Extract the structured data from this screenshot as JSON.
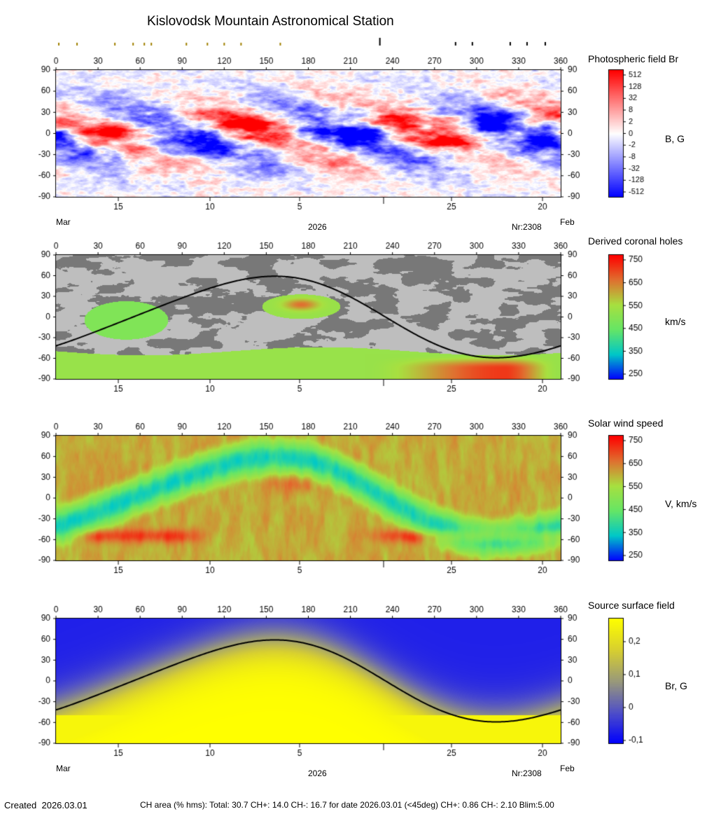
{
  "title": "Kislovodsk Mountain Astronomical Station",
  "footer": {
    "created_label": "Created",
    "created_date": "2026.03.01",
    "ch_area_text": "CH area (% hms): Total: 30.7 CH+: 14.0   CH-: 16.7 for date 2026.03.01 (<45deg) CH+: 0.86    CH-: 2.10 Blim:5.00"
  },
  "shared_axes": {
    "longitude_ticks": [
      0,
      30,
      60,
      90,
      120,
      150,
      180,
      210,
      240,
      270,
      300,
      330,
      360
    ],
    "latitude_ticks": [
      90,
      60,
      30,
      0,
      -30,
      -60,
      -90
    ],
    "xlim": [
      0,
      360
    ],
    "ylim": [
      -90,
      90
    ],
    "date_ticks": [
      "15",
      "10",
      "5",
      "25",
      "20"
    ],
    "month_left": "Mar",
    "month_right": "Feb",
    "year": "2026",
    "rotation_label": "Nr:2308"
  },
  "top_markers": {
    "small_marker_longitudes": [
      2,
      15,
      42,
      55,
      63,
      68,
      93,
      108,
      120,
      132,
      160
    ],
    "tall_marker_longitudes": [
      231
    ],
    "black_marker_longitudes": [
      285,
      297,
      324,
      336,
      349
    ]
  },
  "chart_data": [
    {
      "type": "heatmap",
      "name": "photospheric-field",
      "title": "Photospheric field Br",
      "colorbar_unit": "B, G",
      "colorbar_ticks": [
        "512",
        "128",
        "32",
        "8",
        "2",
        "0",
        "-2",
        "-8",
        "-32",
        "-128",
        "-512"
      ],
      "colormap": [
        "#0000ff",
        "#ffffff",
        "#ff0000"
      ]
    },
    {
      "type": "heatmap",
      "name": "derived-coronal-holes",
      "title": "Derived coronal holes",
      "colorbar_unit": "km/s",
      "colorbar_ticks": [
        "750",
        "650",
        "550",
        "450",
        "350",
        "250"
      ],
      "colorbar_range": [
        250,
        750
      ],
      "colormap": [
        "#0000ff",
        "#00c8c8",
        "#66e666",
        "#a8e040",
        "#e07030",
        "#ff0000"
      ]
    },
    {
      "type": "heatmap",
      "name": "solar-wind-speed",
      "title": "Solar wind speed",
      "colorbar_unit": "V, km/s",
      "colorbar_ticks": [
        "750",
        "650",
        "550",
        "450",
        "350",
        "250"
      ],
      "colorbar_range": [
        250,
        750
      ],
      "colormap": [
        "#0000ff",
        "#00c8c8",
        "#66e666",
        "#a8e040",
        "#e07030",
        "#ff0000"
      ]
    },
    {
      "type": "heatmap",
      "name": "source-surface-field",
      "title": "Source surface field",
      "colorbar_unit": "Br, G",
      "colorbar_ticks": [
        "0,2",
        "0,1",
        "0",
        "-0,1"
      ],
      "colorbar_range": [
        -0.1,
        0.27
      ],
      "colormap": [
        "#0000ff",
        "#5050c8",
        "#9a9a7a",
        "#d8d030",
        "#ffff00"
      ]
    }
  ]
}
